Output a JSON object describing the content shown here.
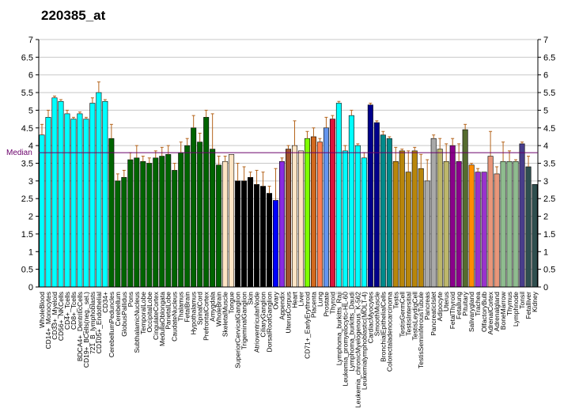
{
  "chart_data": {
    "type": "bar",
    "title": "220385_at",
    "xlabel": "",
    "ylabel": "",
    "ylim": [
      0,
      7
    ],
    "yticks": [
      "0",
      "0.5",
      "1",
      "1.5",
      "2",
      "2.5",
      "3",
      "3.5",
      "4",
      "4.5",
      "5",
      "5.5",
      "6",
      "6.5",
      "7"
    ],
    "grid": true,
    "median_label": "Median",
    "median_value": 3.8,
    "median_color": "#6a006a",
    "categories": [
      "WholeBlood",
      "CD14+_Monocytes",
      "CD33+_Myeloid",
      "CD56+_NKCells",
      "CD4+_Tcells",
      "CD8+_Tcells",
      "BDCA4+_DentriticCells",
      "CD19+_BCells(neg._sel.)",
      "721_B_lymphoblasts",
      "CD105+_Endothelial",
      "CD34+",
      "CerebellumPeduncles",
      "Cerebellum",
      "GlobusPallidus",
      "Pons",
      "SubthalamicNucleus",
      "TemporalLobe",
      "OccipitalLobe",
      "CingulateCortex",
      "MedullaOblongata",
      "ParietalLobe",
      "CaudateNucleus",
      "Thalamus",
      "FetalBrain",
      "Hypothalamus",
      "SpinalCord",
      "PrefrontalCortex",
      "Amygdala",
      "WholeBrain",
      "SkeletalMuscle",
      "Tongue",
      "SuperiorCervicalGanglion",
      "TrigeminalGanglion",
      "Skin",
      "AtrioventricularNode",
      "CiliaryGanglion",
      "DorsalRootGanglion",
      "Ovary",
      "Appendix",
      "UterusCorpus",
      "Heart",
      "Liver",
      "CD71+_EarlyErythroid",
      "Placenta",
      "Lung",
      "Prostate",
      "Thyroid",
      "Lymphoma_burkitts_Raji",
      "Leukemia_promyelocytic-HL-60",
      "Lymphoma_burkitts_Daudi",
      "Leukemia_chronicMyelogenous_K-562",
      "Leukemialymphoblastic(MOLT-4)",
      "CardiacMyocytes",
      "SmoothMuscle",
      "BronchialEpithelialCells",
      "Colorectaladenocarcinoma",
      "Testis",
      "TestisGermCell",
      "TestisIntersitial",
      "TestisLeydigCell",
      "TestisSeminiferousTubule",
      "Pancreas",
      "PancreaticIslet",
      "Adipocyte",
      "Uterus",
      "FetalThyroid",
      "Fetallung",
      "Pituitary",
      "Salivarygland",
      "Trachea",
      "OlfactoryBulb",
      "AdrenalCortex",
      "Adrenalgland",
      "BoneMarrow",
      "Thymus",
      "Lymphnode",
      "Tonsil",
      "Fetalliver",
      "Kidney"
    ],
    "values": [
      4.3,
      4.8,
      5.35,
      5.25,
      4.9,
      4.75,
      4.9,
      4.75,
      5.2,
      5.5,
      5.25,
      4.2,
      3.0,
      3.1,
      3.6,
      3.65,
      3.55,
      3.5,
      3.65,
      3.7,
      3.75,
      3.3,
      3.8,
      4.0,
      4.5,
      4.1,
      4.8,
      3.9,
      3.45,
      3.55,
      3.75,
      3.0,
      3.0,
      3.1,
      2.9,
      2.85,
      2.65,
      2.45,
      3.55,
      3.9,
      4.0,
      3.85,
      4.2,
      4.25,
      4.1,
      4.5,
      4.75,
      5.2,
      3.85,
      4.85,
      4.0,
      3.65,
      5.15,
      4.65,
      4.3,
      4.2,
      3.55,
      3.85,
      3.25,
      3.85,
      3.35,
      3.0,
      4.2,
      3.9,
      3.55,
      4.0,
      3.55,
      4.45,
      3.45,
      3.25,
      3.25,
      3.7,
      3.2,
      3.55,
      3.55,
      3.55,
      4.05,
      3.4,
      2.9
    ],
    "errors": [
      0.3,
      0.2,
      0.05,
      0.05,
      0.1,
      0.05,
      0.05,
      0.05,
      0.15,
      0.3,
      0.05,
      0.4,
      0.2,
      0.2,
      0.2,
      0.35,
      0.15,
      0.15,
      0.2,
      0.25,
      0.25,
      0.2,
      0.3,
      0.2,
      0.35,
      0.25,
      0.2,
      1.0,
      0.25,
      0.15,
      0.0,
      0.5,
      0.4,
      0.15,
      0.4,
      0.4,
      0.2,
      0.9,
      0.1,
      0.1,
      0.7,
      0.0,
      0.2,
      0.25,
      0.1,
      0.3,
      0.1,
      0.05,
      0.15,
      0.15,
      0.05,
      0.15,
      0.05,
      0.05,
      0.1,
      0.05,
      0.4,
      0.05,
      0.6,
      0.1,
      0.4,
      0.6,
      0.1,
      0.3,
      0.5,
      0.2,
      0.5,
      0.15,
      0.05,
      0.1,
      0.0,
      0.7,
      0.2,
      0.55,
      0.3,
      0.05,
      0.05,
      0.3,
      0.0
    ],
    "colors": [
      "#00ffff",
      "#00ffff",
      "#00ffff",
      "#00ffff",
      "#00ffff",
      "#00ffff",
      "#00ffff",
      "#00ffff",
      "#00ffff",
      "#00ffff",
      "#00ffff",
      "#006400",
      "#006400",
      "#006400",
      "#006400",
      "#006400",
      "#006400",
      "#006400",
      "#006400",
      "#006400",
      "#006400",
      "#006400",
      "#006400",
      "#006400",
      "#006400",
      "#006400",
      "#006400",
      "#006400",
      "#006400",
      "#ffe4c4",
      "#ffe4c4",
      "#000000",
      "#000000",
      "#000000",
      "#000000",
      "#000000",
      "#000000",
      "#0000ff",
      "#8a2be2",
      "#a0522d",
      "#ffe4c4",
      "#ffe4c4",
      "#7fff00",
      "#d2691e",
      "#ff7f50",
      "#6495ed",
      "#dc143c",
      "#00ffff",
      "#00ffff",
      "#00ffff",
      "#00ffff",
      "#00ffff",
      "#00008b",
      "#00008b",
      "#008b8b",
      "#008b8b",
      "#b8860b",
      "#b8860b",
      "#b8860b",
      "#b8860b",
      "#b8860b",
      "#a9a9a9",
      "#a9a9a9",
      "#bdb76b",
      "#bdb76b",
      "#8b008b",
      "#8b008b",
      "#556b2f",
      "#ff8c00",
      "#9932cc",
      "#9932cc",
      "#e9967a",
      "#e9967a",
      "#8fbc8f",
      "#8fbc8f",
      "#8fbc8f",
      "#483d8b",
      "#2f4f4f",
      "#2f4f4f"
    ]
  }
}
